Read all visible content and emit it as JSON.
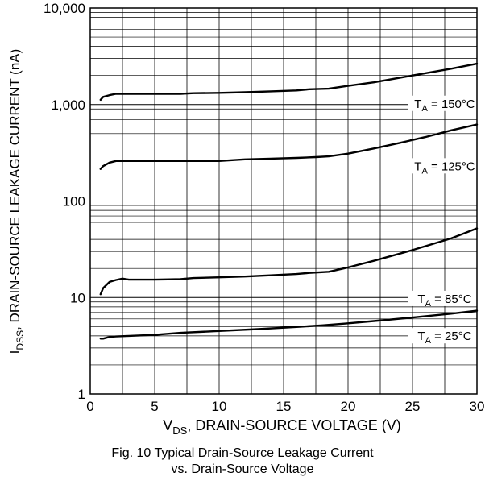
{
  "chart_data": {
    "type": "line",
    "x_scale": "linear",
    "y_scale": "log",
    "xlim": [
      0,
      30
    ],
    "ylim": [
      1,
      10000
    ],
    "grid": true,
    "x_ticks": [
      0,
      5,
      10,
      15,
      20,
      25,
      30
    ],
    "x_tick_labels": [
      "0",
      "5",
      "10",
      "15",
      "20",
      "25",
      "30"
    ],
    "y_ticks": [
      1,
      10,
      100,
      1000,
      10000
    ],
    "y_tick_labels": [
      "1",
      "10",
      "100",
      "1,000",
      "10,000"
    ],
    "xlabel": {
      "pre": "V",
      "sub": "DS",
      "post": ", DRAIN-SOURCE VOLTAGE (V)"
    },
    "ylabel": {
      "pre": "I",
      "sub": "DSS",
      "post": ", DRAIN-SOURCE LEAKAGE CURRENT (nA)"
    },
    "caption": [
      "Fig. 10 Typical Drain-Source Leakage Current",
      "vs. Drain-Source Voltage"
    ],
    "series": [
      {
        "label_pre": "T",
        "label_sub": "A",
        "label_post": " = 150°C",
        "label_at": [
          27.5,
          1000
        ],
        "x": [
          0.8,
          1.0,
          1.5,
          2.0,
          3.0,
          5.0,
          7.0,
          8.0,
          10.0,
          12.0,
          14.0,
          16.0,
          17.0,
          18.5,
          20.0,
          22.0,
          25.0,
          28.0,
          30.0
        ],
        "y": [
          1120,
          1200,
          1250,
          1290,
          1290,
          1290,
          1290,
          1310,
          1320,
          1340,
          1370,
          1400,
          1440,
          1460,
          1560,
          1700,
          2000,
          2350,
          2650
        ]
      },
      {
        "label_pre": "T",
        "label_sub": "A",
        "label_post": " = 125°C",
        "label_at": [
          27.5,
          225
        ],
        "x": [
          0.8,
          1.0,
          1.5,
          2.0,
          3.0,
          5.0,
          8.0,
          10.0,
          12.0,
          14.0,
          16.0,
          17.5,
          18.5,
          20.0,
          22.0,
          24.0,
          26.0,
          28.0,
          30.0
        ],
        "y": [
          215,
          230,
          250,
          260,
          260,
          260,
          260,
          260,
          270,
          275,
          280,
          285,
          290,
          310,
          350,
          400,
          460,
          540,
          620
        ]
      },
      {
        "label_pre": "T",
        "label_sub": "A",
        "label_post": " = 85°C",
        "label_at": [
          27.5,
          9.5
        ],
        "x": [
          0.8,
          1.0,
          1.5,
          2.0,
          2.5,
          3.0,
          5.0,
          7.0,
          8.0,
          10.0,
          12.0,
          14.0,
          16.0,
          17.0,
          18.5,
          20.0,
          22.0,
          25.0,
          28.0,
          30.0
        ],
        "y": [
          10.8,
          12.5,
          14.5,
          15.2,
          15.7,
          15.3,
          15.3,
          15.5,
          15.9,
          16.2,
          16.5,
          17.0,
          17.5,
          18.0,
          18.5,
          20.5,
          24.0,
          31.0,
          41.0,
          52.0
        ]
      },
      {
        "label_pre": "T",
        "label_sub": "A",
        "label_post": " = 25°C",
        "label_at": [
          27.5,
          3.9
        ],
        "x": [
          0.8,
          1.0,
          1.5,
          2.0,
          3.0,
          5.0,
          7.0,
          10.0,
          13.0,
          16.0,
          18.0,
          20.0,
          22.0,
          25.0,
          28.0,
          30.0
        ],
        "y": [
          3.75,
          3.75,
          3.9,
          3.95,
          4.0,
          4.1,
          4.3,
          4.5,
          4.7,
          4.95,
          5.15,
          5.4,
          5.7,
          6.2,
          6.8,
          7.3
        ]
      }
    ]
  }
}
